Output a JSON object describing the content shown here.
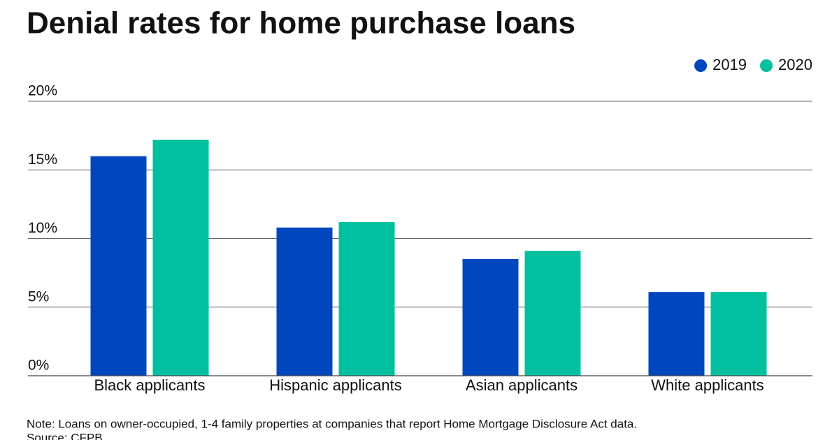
{
  "chart_data": {
    "type": "bar",
    "title": "Denial rates for home purchase loans",
    "categories": [
      "Black applicants",
      "Hispanic applicants",
      "Asian applicants",
      "White applicants"
    ],
    "series": [
      {
        "name": "2019",
        "color": "#0047bf",
        "values": [
          16.0,
          10.8,
          8.5,
          6.1
        ]
      },
      {
        "name": "2020",
        "color": "#00c09f",
        "values": [
          17.2,
          11.2,
          9.1,
          6.1
        ]
      }
    ],
    "ylim": [
      0,
      20
    ],
    "yticks": [
      {
        "value": 0,
        "label": "0%"
      },
      {
        "value": 5,
        "label": "5%"
      },
      {
        "value": 10,
        "label": "10%"
      },
      {
        "value": 15,
        "label": "15%"
      },
      {
        "value": 20,
        "label": "20%"
      }
    ],
    "grid": true,
    "legend": "top-right",
    "note": "Note: Loans on owner-occupied, 1-4 family properties at companies that report Home Mortgage Disclosure Act data.",
    "source": "Source: CFPB"
  }
}
